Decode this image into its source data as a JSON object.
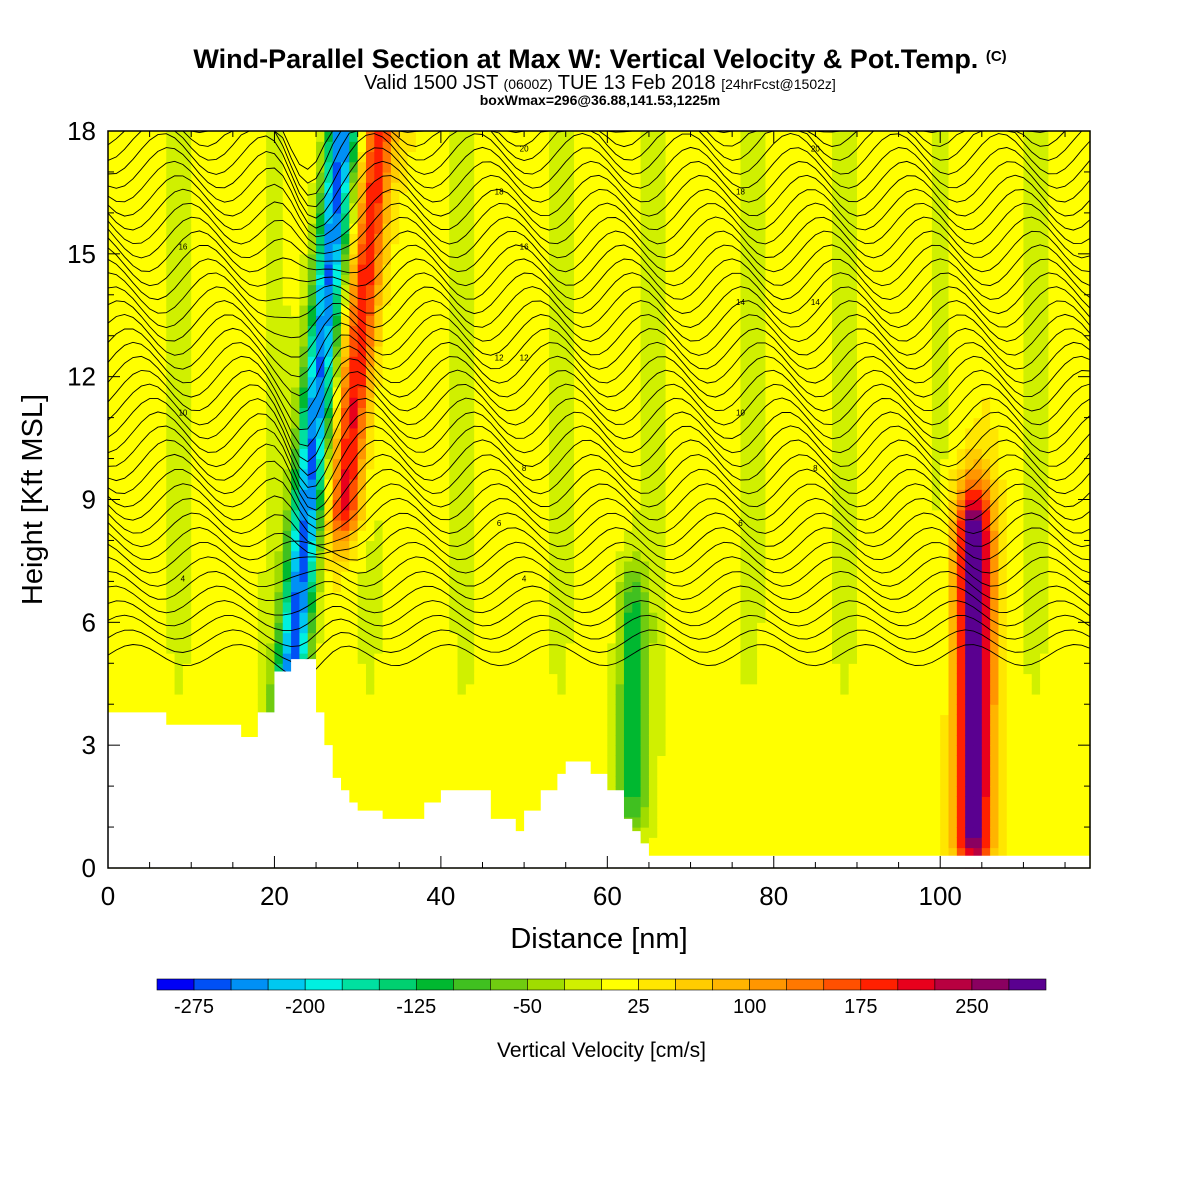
{
  "title": {
    "main": "Wind-Parallel Section at Max W: Vertical Velocity & Pot.Temp.",
    "main_suffix": "(C)",
    "valid_prefix": "Valid 1500 JST",
    "valid_utc": "(0600Z)",
    "valid_date": "TUE 13 Feb 2018",
    "forecast": "[24hrFcst@1502z]",
    "box_info": "boxWmax=296@36.88,141.53,1225m"
  },
  "chart_data": {
    "type": "heatmap",
    "title": "Wind-Parallel Section at Max W: Vertical Velocity & Pot.Temp. (C)",
    "xlabel": "Distance [nm]",
    "ylabel": "Height [Kft MSL]",
    "xlim": [
      0,
      118
    ],
    "ylim": [
      0,
      18
    ],
    "x_ticks": [
      0,
      20,
      40,
      60,
      80,
      100
    ],
    "x_tick_labels": [
      "0",
      "20",
      "40",
      "60",
      "80",
      "100"
    ],
    "y_ticks": [
      0,
      3,
      6,
      9,
      12,
      15,
      18
    ],
    "y_tick_labels": [
      "0",
      "3",
      "6",
      "9",
      "12",
      "15",
      "18"
    ],
    "colorbar": {
      "label": "Vertical Velocity [cm/s]",
      "min": -300,
      "max": 275,
      "step": 25,
      "tick_values": [
        -275,
        -200,
        -125,
        -50,
        25,
        100,
        175,
        250
      ],
      "tick_labels": [
        "-275",
        "-200",
        "-125",
        "-50",
        "25",
        "100",
        "175",
        "250"
      ],
      "colors": [
        "#0000f5",
        "#0050f5",
        "#0090f5",
        "#00c8f0",
        "#00f0e0",
        "#00e0a0",
        "#00d070",
        "#00b830",
        "#40c020",
        "#70cc10",
        "#a0dc00",
        "#d0f000",
        "#ffff00",
        "#ffe600",
        "#ffcc00",
        "#ffb400",
        "#ff9600",
        "#ff7800",
        "#ff5000",
        "#ff2000",
        "#e8001c",
        "#b80040",
        "#8a0060",
        "#5a0090"
      ]
    },
    "features": [
      {
        "name": "downdraft",
        "x": 24.5,
        "w_min": -275,
        "height_range": [
          4,
          18
        ]
      },
      {
        "name": "updraft",
        "x": 29,
        "w_max": 200,
        "height_range": [
          9,
          18
        ]
      },
      {
        "name": "updraft",
        "x": 104,
        "w_max": 296,
        "height_range": [
          1,
          8
        ]
      },
      {
        "name": "downdraft",
        "x": 63,
        "w_min": -125,
        "height_range": [
          2,
          6
        ]
      }
    ],
    "terrain": {
      "x": [
        0,
        7,
        16,
        18,
        20,
        22,
        25,
        26,
        27,
        28,
        29,
        30,
        33,
        38,
        40,
        42,
        46,
        48,
        49,
        50,
        52,
        54,
        55,
        56,
        58,
        60,
        62,
        63,
        64,
        65,
        66,
        118
      ],
      "height": [
        3.8,
        3.5,
        3.2,
        3.8,
        4.8,
        5.1,
        3.8,
        3.0,
        2.2,
        1.9,
        1.6,
        1.4,
        1.2,
        1.6,
        1.9,
        1.9,
        1.2,
        1.2,
        0.9,
        1.4,
        1.9,
        2.3,
        2.6,
        2.6,
        2.3,
        1.9,
        1.2,
        0.9,
        0.6,
        0.3,
        0.3,
        0.3
      ]
    },
    "theta_contours": {
      "interval": 2,
      "label_values": [
        4,
        6,
        8,
        10,
        12,
        14,
        16,
        18,
        20
      ]
    }
  }
}
